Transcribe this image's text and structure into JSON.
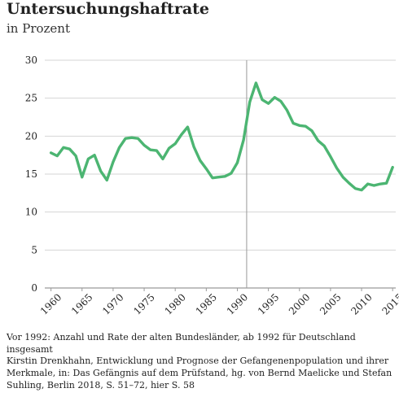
{
  "chart_data": {
    "type": "line",
    "title": "Untersuchungshaftrate",
    "subtitle": "in Prozent",
    "xlabel": "",
    "ylabel": "",
    "xlim": [
      1959,
      2015.5
    ],
    "ylim": [
      0,
      30
    ],
    "x_ticks": [
      1960,
      1965,
      1970,
      1975,
      1980,
      1985,
      1990,
      1995,
      2000,
      2005,
      2010,
      2015
    ],
    "y_ticks": [
      0,
      5,
      10,
      15,
      20,
      25,
      30
    ],
    "grid": "horizontal",
    "reference_line_x": 1991.5,
    "line_color": "#4cb572",
    "series": [
      {
        "x": [
          1960,
          1961,
          1962,
          1963,
          1964,
          1965,
          1966,
          1967,
          1968,
          1969,
          1970,
          1971,
          1972,
          1973,
          1974,
          1975,
          1976,
          1977,
          1978,
          1979,
          1980,
          1981,
          1982,
          1983,
          1984,
          1985,
          1986,
          1987,
          1988,
          1989,
          1990,
          1991,
          1992,
          1993,
          1994,
          1995,
          1996,
          1997,
          1998,
          1999,
          2000,
          2001,
          2002,
          2003,
          2004,
          2005,
          2006,
          2007,
          2008,
          2009,
          2010,
          2011,
          2012,
          2013,
          2014,
          2015
        ],
        "values": [
          17.8,
          17.4,
          18.5,
          18.3,
          17.4,
          14.6,
          17.0,
          17.5,
          15.4,
          14.2,
          16.6,
          18.5,
          19.7,
          19.8,
          19.7,
          18.8,
          18.2,
          18.1,
          17.0,
          18.4,
          19.0,
          20.2,
          21.2,
          18.6,
          16.8,
          15.7,
          14.5,
          14.6,
          14.7,
          15.1,
          16.5,
          19.5,
          24.5,
          27.0,
          24.8,
          24.3,
          25.1,
          24.6,
          23.4,
          21.7,
          21.4,
          21.3,
          20.7,
          19.4,
          18.7,
          17.3,
          15.8,
          14.6,
          13.8,
          13.1,
          12.9,
          13.7,
          13.5,
          13.7,
          13.8,
          15.9
        ]
      }
    ]
  },
  "note": "Vor 1992: Anzahl und Rate der alten Bundesländer, ab 1992 für Deutschland insgesamt",
  "source": "Kirstin Drenkhahn, Entwicklung und Prognose der Gefangenenpopulation und ihrer Merkmale, in: Das Gefängnis auf dem Prüfstand, hg. von Bernd Maelicke und Stefan Suhling, Berlin 2018, S. 51–72, hier S. 58"
}
